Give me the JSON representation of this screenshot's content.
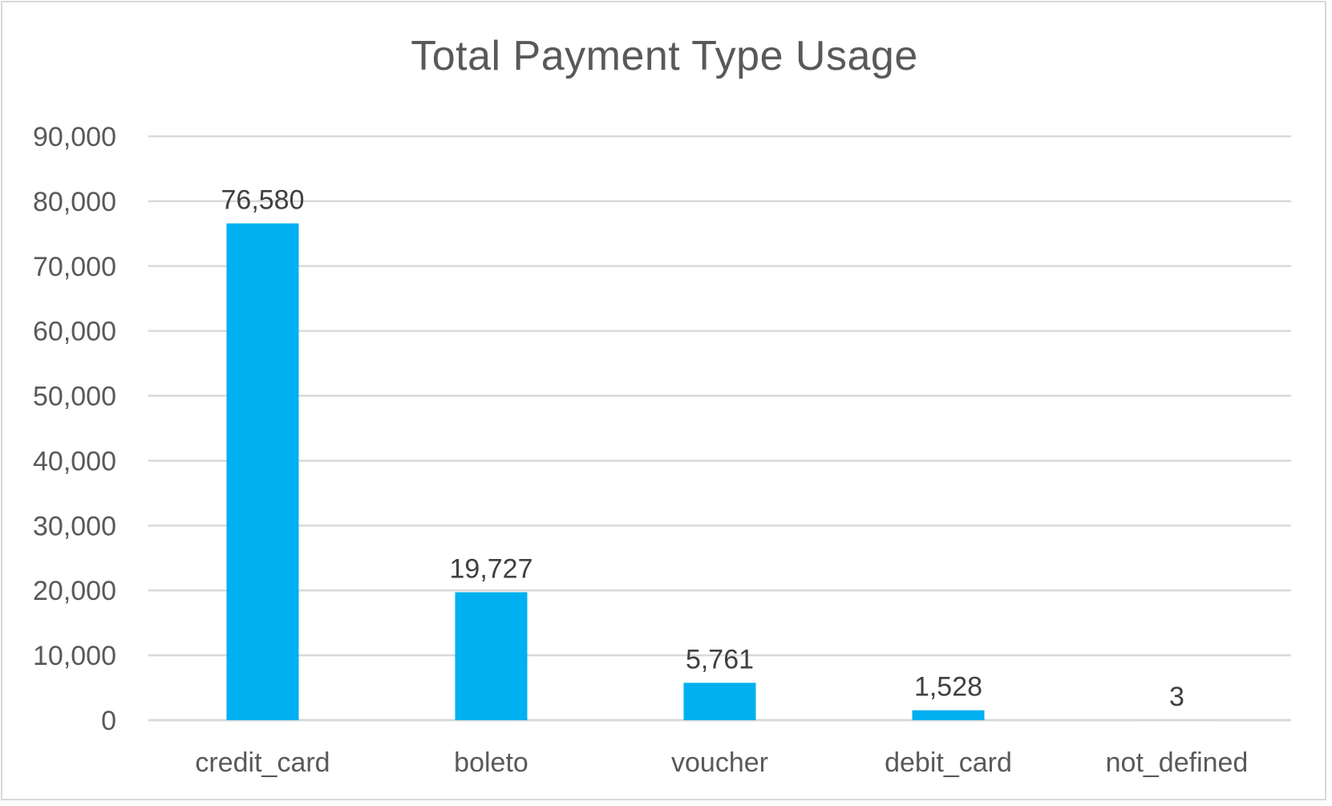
{
  "chart_data": {
    "type": "bar",
    "title": "Total Payment Type Usage",
    "categories": [
      "credit_card",
      "boleto",
      "voucher",
      "debit_card",
      "not_defined"
    ],
    "values": [
      76580,
      19727,
      5761,
      1528,
      3
    ],
    "data_labels": [
      "76,580",
      "19,727",
      "5,761",
      "1,528",
      "3"
    ],
    "ylim": [
      0,
      90000
    ],
    "y_ticks": [
      0,
      10000,
      20000,
      30000,
      40000,
      50000,
      60000,
      70000,
      80000,
      90000
    ],
    "y_tick_labels": [
      "0",
      "10,000",
      "20,000",
      "30,000",
      "40,000",
      "50,000",
      "60,000",
      "70,000",
      "80,000",
      "90,000"
    ],
    "grid": true,
    "legend": "none",
    "bar_color": "#00b0f0",
    "gridline_color": "#d9d9d9"
  }
}
